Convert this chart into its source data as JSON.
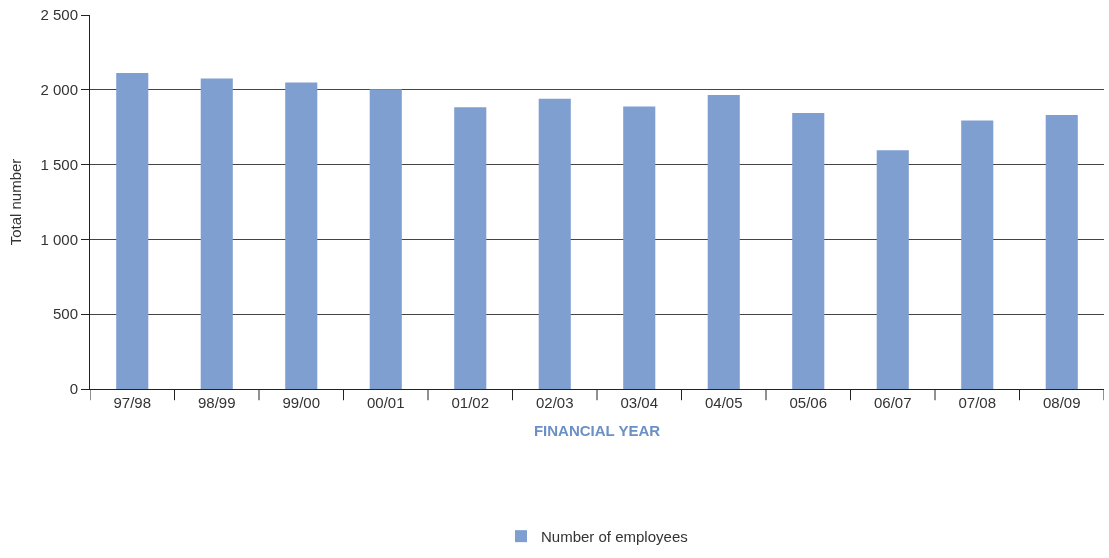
{
  "chart_data": {
    "type": "bar",
    "xlabel": "FINANCIAL YEAR",
    "ylabel": "Total number",
    "categories": [
      "97/98",
      "98/99",
      "99/00",
      "00/01",
      "01/02",
      "02/03",
      "03/04",
      "04/05",
      "05/06",
      "06/07",
      "07/08",
      "08/09"
    ],
    "series": [
      {
        "name": "Number of employees",
        "color": "#7f9fd0",
        "values": [
          2113,
          2075,
          2049,
          2004,
          1883,
          1940,
          1889,
          1966,
          1845,
          1596,
          1794,
          1832
        ]
      }
    ],
    "ylim": [
      0,
      2500
    ],
    "yticks": [
      0,
      {
        "value": 500,
        "label": "500"
      },
      {
        "value": 1000,
        "label": "1 000"
      },
      {
        "value": 1500,
        "label": "1 500"
      },
      {
        "value": 2000,
        "label": "2 000"
      },
      {
        "value": 2500,
        "label": "2 500"
      }
    ],
    "grid": "y",
    "legend": "bottom"
  }
}
